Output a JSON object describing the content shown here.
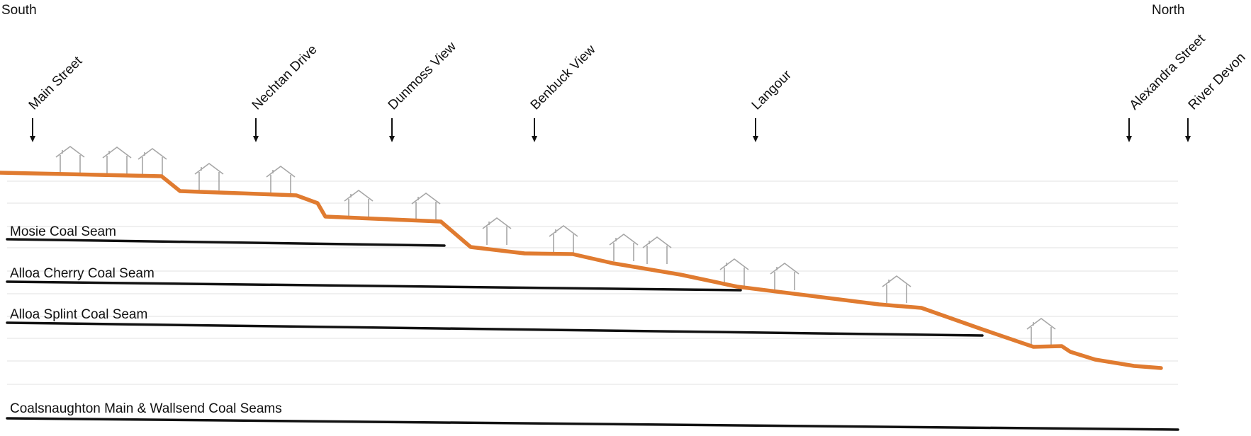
{
  "directions": {
    "south": "South",
    "north": "North"
  },
  "streets": [
    {
      "label": "Main Street"
    },
    {
      "label": "Nechtan Drive"
    },
    {
      "label": "Dunmoss View"
    },
    {
      "label": "Benbuck View"
    },
    {
      "label": "Langour"
    },
    {
      "label": "Alexandra Street"
    },
    {
      "label": "River Devon"
    }
  ],
  "seams": [
    {
      "label": "Mosie Coal Seam"
    },
    {
      "label": "Alloa Cherry Coal Seam"
    },
    {
      "label": "Alloa Splint Coal Seam"
    },
    {
      "label": "Coalsnaughton Main & Wallsend Coal Seams"
    }
  ],
  "colors": {
    "ground": "#e07b30",
    "seam": "#111111",
    "house_outline": "#a6a6a6",
    "grid": "#e6e6e6"
  },
  "icons": {
    "house": "house-outline-icon",
    "arrow": "down-arrow-icon"
  }
}
